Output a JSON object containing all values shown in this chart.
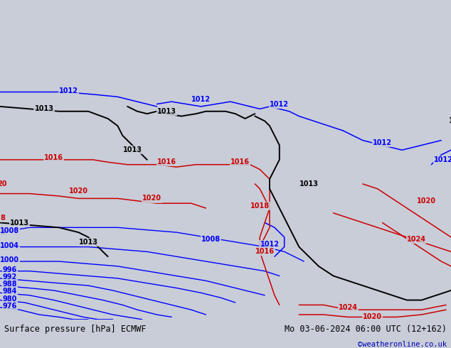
{
  "title_left": "Surface pressure [hPa] ECMWF",
  "title_right": "Mo 03-06-2024 06:00 UTC (12+162)",
  "copyright": "©weatheronline.co.uk",
  "ocean_color": "#c8cdd8",
  "land_color": "#b0d890",
  "land_edge_color": "#888888",
  "fig_width": 6.34,
  "fig_height": 4.9,
  "dpi": 100,
  "bottom_bar_color": "#d0d0d0",
  "title_fontsize": 8.5,
  "copyright_color": "#0000bb",
  "label_fontsize": 7,
  "contour_blue": "#0000ff",
  "contour_red": "#cc0000",
  "contour_black": "#000000",
  "lon_min": 94,
  "lon_max": 186,
  "lat_min": -58,
  "lat_max": 8
}
